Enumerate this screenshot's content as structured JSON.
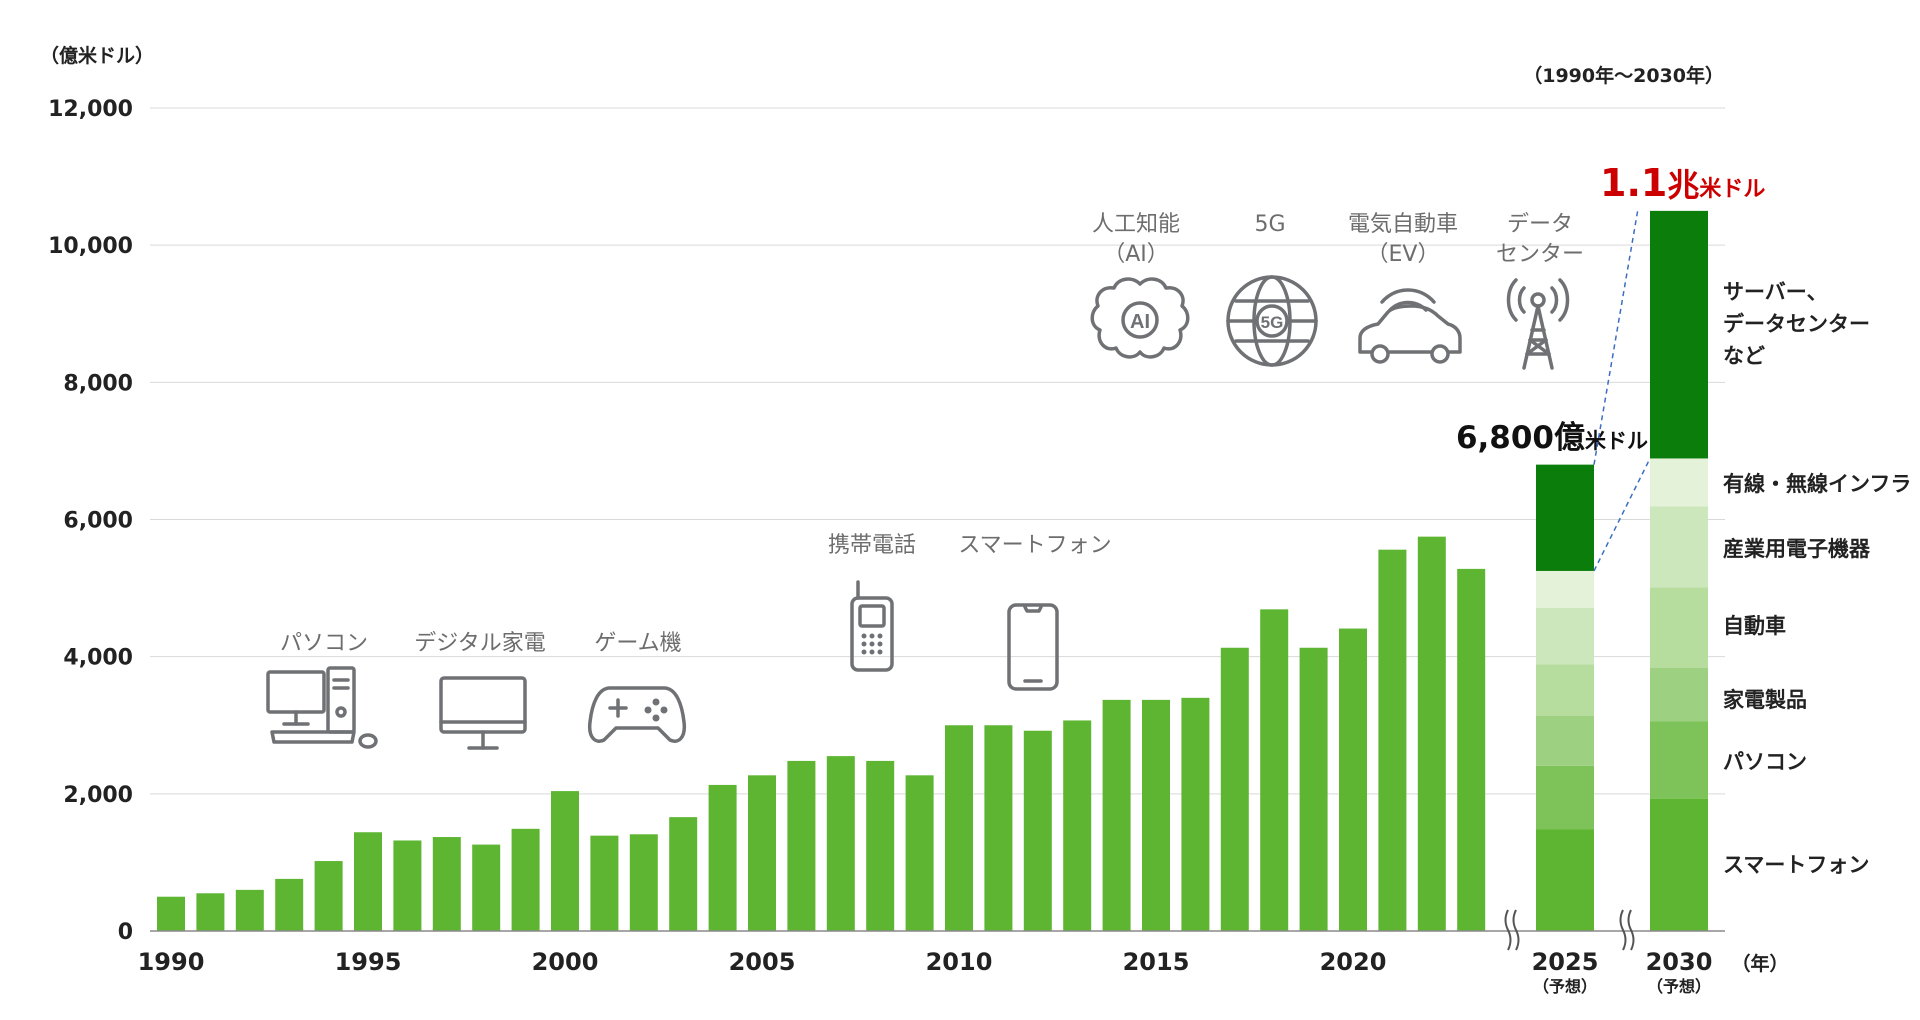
{
  "chart_data": {
    "type": "bar",
    "ylabel": "（億米ドル）",
    "period_label": "（1990年〜2030年）",
    "x_unit_label": "（年）",
    "ylim": [
      0,
      12000
    ],
    "yticks": [
      0,
      2000,
      4000,
      6000,
      8000,
      10000,
      12000
    ],
    "ytick_labels": [
      "0",
      "2,000",
      "4,000",
      "6,000",
      "8,000",
      "10,000",
      "12,000"
    ],
    "xtick_labels": [
      "1990",
      "1995",
      "2000",
      "2005",
      "2010",
      "2015",
      "2020"
    ],
    "bar_color": "#5db532",
    "series": [
      {
        "years": [
          1990,
          1991,
          1992,
          1993,
          1994,
          1995,
          1996,
          1997,
          1998,
          1999,
          2000,
          2001,
          2002,
          2003,
          2004,
          2005,
          2006,
          2007,
          2008,
          2009,
          2010,
          2011,
          2012,
          2013,
          2014,
          2015,
          2016,
          2017,
          2018,
          2019,
          2020,
          2021,
          2022,
          2023
        ],
        "values": [
          500,
          550,
          600,
          760,
          1020,
          1440,
          1320,
          1370,
          1260,
          1490,
          2040,
          1390,
          1410,
          1660,
          2130,
          2270,
          2480,
          2550,
          2480,
          2270,
          3000,
          3000,
          2920,
          3070,
          3370,
          3370,
          3400,
          4130,
          4690,
          4130,
          4410,
          5560,
          5750,
          5280
        ]
      }
    ],
    "forecast": [
      {
        "year_label": "2025",
        "note": "（予想）",
        "total_num": "6,800",
        "total_unit": "億",
        "total_currency": "米ドル",
        "segments": [
          {
            "category": "スマートフォン",
            "value": 1480,
            "color": "#5db532"
          },
          {
            "category": "パソコン",
            "value": 930,
            "color": "#7dc35a"
          },
          {
            "category": "家電製品",
            "value": 730,
            "color": "#9dd080"
          },
          {
            "category": "自動車",
            "value": 750,
            "color": "#b6dc9e"
          },
          {
            "category": "産業用電子機器",
            "value": 820,
            "color": "#cde7bd"
          },
          {
            "category": "有線・無線インフラ",
            "value": 540,
            "color": "#e4f2da"
          },
          {
            "category": "サーバー、データセンターなど",
            "value": 1550,
            "color": "#0a7d0a"
          }
        ]
      },
      {
        "year_label": "2030",
        "note": "（予想）",
        "total_num": "1.1",
        "total_unit": "兆",
        "total_currency": "米ドル",
        "segments": [
          {
            "category": "スマートフォン",
            "value": 1930,
            "color": "#5db532"
          },
          {
            "category": "パソコン",
            "value": 1130,
            "color": "#7dc35a"
          },
          {
            "category": "家電製品",
            "value": 780,
            "color": "#9dd080"
          },
          {
            "category": "自動車",
            "value": 1170,
            "color": "#b6dc9e"
          },
          {
            "category": "産業用電子機器",
            "value": 1180,
            "color": "#cde7bd"
          },
          {
            "category": "有線・無線インフラ",
            "value": 700,
            "color": "#e4f2da"
          },
          {
            "category": "サーバー、データセンターなど",
            "value": 3610,
            "color": "#0a7d0a"
          }
        ]
      }
    ],
    "category_labels": [
      [
        "サーバー、",
        "データセンター",
        "など"
      ],
      [
        "有線・無線インフラ"
      ],
      [
        "産業用電子機器"
      ],
      [
        "自動車"
      ],
      [
        "家電製品"
      ],
      [
        "パソコン"
      ],
      [
        "スマートフォン"
      ]
    ],
    "eras": [
      {
        "label": "パソコン",
        "icon": "desktop-pc-icon"
      },
      {
        "label": "デジタル家電",
        "icon": "monitor-icon"
      },
      {
        "label": "ゲーム機",
        "icon": "gamepad-icon"
      },
      {
        "label": "携帯電話",
        "icon": "feature-phone-icon"
      },
      {
        "label": "スマートフォン",
        "icon": "smartphone-icon"
      },
      {
        "label": [
          "人工知能",
          "（AI）"
        ],
        "icon": "ai-brain-icon"
      },
      {
        "label": [
          "5G"
        ],
        "icon": "5g-globe-icon"
      },
      {
        "label": [
          "電気自動車",
          "（EV）"
        ],
        "icon": "electric-car-icon"
      },
      {
        "label": [
          "データ",
          "センター"
        ],
        "icon": "data-tower-icon"
      }
    ],
    "colors": {
      "total_2030": "#cc0000",
      "grid": "#d9d9d9",
      "icon": "#6f7174",
      "leader": "#3b6ec2"
    }
  }
}
